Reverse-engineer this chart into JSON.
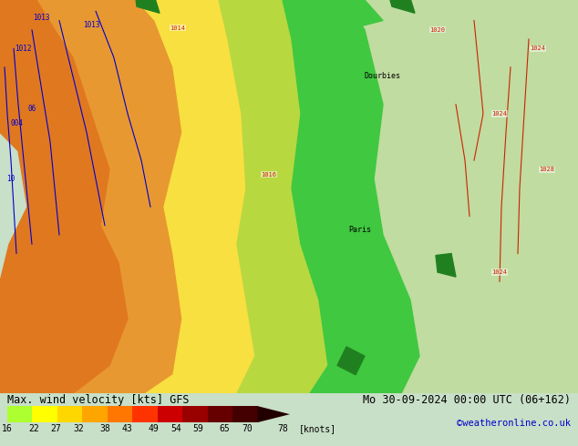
{
  "title_left": "Max. wind velocity [kts] GFS",
  "title_right": "Mo 30-09-2024 00:00 UTC (06+162)",
  "credit": "©weatheronline.co.uk",
  "colorbar_values": [
    16,
    22,
    27,
    32,
    38,
    43,
    49,
    54,
    59,
    65,
    70,
    78
  ],
  "colorbar_label": "[knots]",
  "legend_colors": [
    "#adff2f",
    "#ffff00",
    "#ffd700",
    "#ffa500",
    "#ff7700",
    "#ff3300",
    "#cc0000",
    "#990000",
    "#660000",
    "#440000",
    "#220000"
  ],
  "fig_width": 6.34,
  "fig_height": 4.9,
  "dpi": 100,
  "map_bg_color": "#c8dfc8",
  "bottom_bar_color": "#d8d8d0",
  "title_fontsize": 8.5,
  "credit_fontsize": 7.5,
  "tick_fontsize": 7,
  "map_colors": {
    "orange_dark": "#e07820",
    "orange": "#e89830",
    "yellow": "#f8e040",
    "yellow_green": "#b8d840",
    "green": "#40c840",
    "light_green": "#c0dca0",
    "white_gray": "#d8dcd0"
  },
  "contour_label_color": "#cc2200",
  "isobar_label_color": "#cc2200",
  "wind_line_color": "#0000cc",
  "black": "#000000"
}
